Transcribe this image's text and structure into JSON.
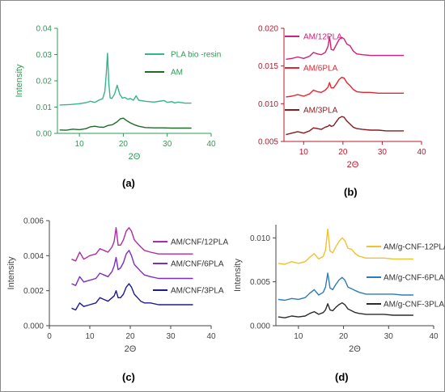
{
  "chart_data": [
    {
      "type": "line",
      "panel_label": "(a)",
      "xlabel": "2Θ",
      "ylabel": "Intensity",
      "xlim": [
        5,
        40
      ],
      "ylim": [
        0,
        0.04
      ],
      "xticks": [
        10,
        20,
        30,
        40
      ],
      "yticks": [
        0.0,
        0.01,
        0.02,
        0.03,
        0.04
      ],
      "ytick_labels": [
        "0.00",
        "0.01",
        "0.02",
        "0.03",
        "0.04"
      ],
      "grid": false,
      "legend_position": "top-right",
      "axis_color": "#2e9b55",
      "series": [
        {
          "name": "PLA bio -resin",
          "color": "#35b58a",
          "x": [
            5.5,
            8,
            10,
            11.5,
            12.5,
            13.5,
            14.5,
            15.3,
            15.8,
            16.1,
            16.4,
            16.7,
            17.0,
            17.4,
            18.0,
            18.6,
            19.2,
            19.8,
            20.3,
            21.0,
            21.6,
            22.3,
            22.9,
            23.5,
            25,
            27,
            28.5,
            29.3,
            30,
            31,
            31.7,
            32.5,
            34,
            35.5
          ],
          "values": [
            0.0108,
            0.011,
            0.0113,
            0.0117,
            0.0122,
            0.0118,
            0.0127,
            0.0132,
            0.016,
            0.0225,
            0.0305,
            0.019,
            0.0135,
            0.0133,
            0.015,
            0.0183,
            0.0148,
            0.0134,
            0.0137,
            0.013,
            0.0133,
            0.0126,
            0.0143,
            0.0126,
            0.0122,
            0.0119,
            0.0123,
            0.0125,
            0.0118,
            0.0121,
            0.0116,
            0.0119,
            0.0115,
            0.0115
          ]
        },
        {
          "name": "AM",
          "color": "#1e6b2a",
          "x": [
            5.5,
            7,
            8.5,
            10,
            11.5,
            12.5,
            13.5,
            14.5,
            15.5,
            16.5,
            17.5,
            18.5,
            19.3,
            20.0,
            20.8,
            21.6,
            22.5,
            23.5,
            25,
            27,
            29,
            31,
            33,
            35.5
          ],
          "values": [
            0.0013,
            0.0012,
            0.0016,
            0.0014,
            0.0018,
            0.0025,
            0.0027,
            0.0024,
            0.0023,
            0.003,
            0.0033,
            0.0043,
            0.0055,
            0.0058,
            0.0048,
            0.004,
            0.0033,
            0.0027,
            0.0022,
            0.0021,
            0.0021,
            0.002,
            0.002,
            0.002
          ]
        }
      ]
    },
    {
      "type": "line",
      "panel_label": "(b)",
      "xlabel": "2Θ",
      "ylabel": "",
      "xlim": [
        5,
        40
      ],
      "ylim": [
        0.005,
        0.02
      ],
      "xticks": [
        10,
        20,
        30,
        40
      ],
      "yticks": [
        0.005,
        0.01,
        0.015,
        0.02
      ],
      "ytick_labels": [
        "0.005",
        "0.010",
        "0.015",
        "0.020"
      ],
      "grid": false,
      "legend_position": "inline-right",
      "axis_color": "#c0182a",
      "series": [
        {
          "name": "AM/12PLA",
          "color": "#d0217a",
          "x": [
            5.5,
            7,
            8.5,
            10,
            11.5,
            12.5,
            13.5,
            14.5,
            15.5,
            16.2,
            16.6,
            17.0,
            17.6,
            18.3,
            19.0,
            19.7,
            20.3,
            21.0,
            21.8,
            22.6,
            23.5,
            25,
            27,
            29,
            31,
            33,
            35.5
          ],
          "values": [
            0.0159,
            0.016,
            0.0162,
            0.016,
            0.0163,
            0.0168,
            0.0166,
            0.0165,
            0.0168,
            0.0176,
            0.0189,
            0.0172,
            0.0171,
            0.0178,
            0.0185,
            0.0188,
            0.0186,
            0.0179,
            0.0177,
            0.017,
            0.0166,
            0.0165,
            0.0164,
            0.0164,
            0.0164,
            0.0164,
            0.0164
          ]
        },
        {
          "name": "AM/6PLA",
          "color": "#e8232e",
          "x": [
            5.5,
            7,
            8.5,
            10,
            11.5,
            12.5,
            13.5,
            14.5,
            15.5,
            16.2,
            16.6,
            17.0,
            17.6,
            18.3,
            19.0,
            19.7,
            20.3,
            21.0,
            21.8,
            22.6,
            23.5,
            25,
            27,
            29,
            31,
            33,
            35.5
          ],
          "values": [
            0.0109,
            0.011,
            0.0112,
            0.011,
            0.0113,
            0.0118,
            0.0116,
            0.0115,
            0.0118,
            0.0122,
            0.0128,
            0.0121,
            0.0121,
            0.0126,
            0.0132,
            0.0135,
            0.0134,
            0.0128,
            0.0124,
            0.0119,
            0.0116,
            0.0115,
            0.0115,
            0.0114,
            0.0114,
            0.0114,
            0.0114
          ]
        },
        {
          "name": "AM/3PLA",
          "color": "#8a1a1e",
          "x": [
            5.5,
            7,
            8.5,
            10,
            11.5,
            12.5,
            13.5,
            14.5,
            15.5,
            16.2,
            16.6,
            17.0,
            17.6,
            18.3,
            19.0,
            19.7,
            20.3,
            21.0,
            21.8,
            22.6,
            23.5,
            25,
            27,
            29,
            31,
            33,
            35.5
          ],
          "values": [
            0.0059,
            0.0061,
            0.0063,
            0.0061,
            0.0064,
            0.0068,
            0.0067,
            0.0066,
            0.0069,
            0.007,
            0.0072,
            0.007,
            0.0071,
            0.0076,
            0.0081,
            0.0083,
            0.0082,
            0.0077,
            0.0073,
            0.0069,
            0.0067,
            0.0066,
            0.0065,
            0.0065,
            0.0064,
            0.0064,
            0.0064
          ]
        }
      ]
    },
    {
      "type": "line",
      "panel_label": "(c)",
      "xlabel": "2Θ",
      "ylabel": "Intensity",
      "xlim": [
        0,
        40
      ],
      "ylim": [
        0,
        0.006
      ],
      "xticks": [
        0,
        10,
        20,
        30,
        40
      ],
      "yticks": [
        0.0,
        0.002,
        0.004,
        0.006
      ],
      "ytick_labels": [
        "0.000",
        "0.002",
        "0.004",
        "0.006"
      ],
      "grid": false,
      "legend_position": "inline-right",
      "axis_color": "#444444",
      "series": [
        {
          "name": "AM/CNF/12PLA",
          "color": "#b02aa8",
          "x": [
            5.5,
            6.5,
            7.5,
            8.5,
            10,
            11.5,
            12.5,
            13.5,
            14.5,
            15.5,
            16.0,
            16.5,
            17.0,
            17.6,
            18.3,
            19.0,
            19.7,
            20.3,
            21.0,
            21.8,
            22.6,
            23.5,
            25,
            27,
            29,
            31,
            33,
            35.5
          ],
          "values": [
            0.0038,
            0.0037,
            0.0042,
            0.0038,
            0.004,
            0.0041,
            0.0044,
            0.0043,
            0.0042,
            0.0045,
            0.0048,
            0.0056,
            0.0046,
            0.0046,
            0.0049,
            0.0054,
            0.0056,
            0.0054,
            0.0049,
            0.0047,
            0.0045,
            0.0043,
            0.0042,
            0.0041,
            0.0041,
            0.0041,
            0.0041,
            0.0041
          ]
        },
        {
          "name": "AM/CNF/6PLA",
          "color": "#7a2fc0",
          "x": [
            5.5,
            6.5,
            7.5,
            8.5,
            10,
            11.5,
            12.5,
            13.5,
            14.5,
            15.5,
            16.0,
            16.5,
            17.0,
            17.6,
            18.3,
            19.0,
            19.7,
            20.3,
            21.0,
            21.8,
            22.6,
            23.5,
            25,
            27,
            29,
            31,
            33,
            35.5
          ],
          "values": [
            0.0024,
            0.0023,
            0.0028,
            0.0025,
            0.0026,
            0.0027,
            0.003,
            0.0029,
            0.0028,
            0.0031,
            0.0034,
            0.0039,
            0.0032,
            0.0033,
            0.0036,
            0.0041,
            0.0043,
            0.004,
            0.0035,
            0.0033,
            0.0031,
            0.0029,
            0.0028,
            0.0027,
            0.0027,
            0.0027,
            0.0027,
            0.0027
          ]
        },
        {
          "name": "AM/CNF/3PLA",
          "color": "#1f1a8e",
          "x": [
            5.5,
            6.5,
            7.5,
            8.5,
            10,
            11.5,
            12.5,
            13.5,
            14.5,
            15.5,
            16.0,
            16.5,
            17.0,
            17.6,
            18.3,
            19.0,
            19.7,
            20.3,
            21.0,
            21.8,
            22.6,
            23.5,
            25,
            27,
            29,
            31,
            33,
            35.5
          ],
          "values": [
            0.001,
            0.0009,
            0.0013,
            0.0011,
            0.0012,
            0.0013,
            0.0016,
            0.0015,
            0.0014,
            0.0016,
            0.0017,
            0.002,
            0.0016,
            0.0016,
            0.0018,
            0.0022,
            0.0024,
            0.0022,
            0.0018,
            0.0016,
            0.0014,
            0.0013,
            0.0013,
            0.0012,
            0.0012,
            0.0012,
            0.0012,
            0.0012
          ]
        }
      ]
    },
    {
      "type": "line",
      "panel_label": "(d)",
      "xlabel": "2Θ",
      "ylabel": "Intensity",
      "xlim": [
        5,
        40
      ],
      "ylim": [
        0,
        0.0115
      ],
      "xticks": [
        10,
        20,
        30,
        40
      ],
      "yticks": [
        0.0,
        0.005,
        0.01
      ],
      "ytick_labels": [
        "0.000",
        "0.005",
        "0.010"
      ],
      "grid": false,
      "legend_position": "inline-right",
      "axis_color": "#444444",
      "series": [
        {
          "name": "AM/g-CNF-12PLA",
          "color": "#f2c12e",
          "x": [
            5.5,
            7,
            8.5,
            10,
            11.5,
            12.5,
            13.5,
            14.5,
            15.5,
            16.0,
            16.5,
            17.0,
            17.6,
            18.3,
            19.0,
            19.7,
            20.3,
            21.0,
            21.8,
            22.6,
            23.5,
            25,
            27,
            29,
            31,
            33,
            35.5
          ],
          "values": [
            0.0071,
            0.007,
            0.0073,
            0.0071,
            0.0073,
            0.0078,
            0.0082,
            0.0076,
            0.0079,
            0.0086,
            0.011,
            0.0085,
            0.0083,
            0.009,
            0.0096,
            0.01,
            0.0097,
            0.0088,
            0.0087,
            0.0082,
            0.0079,
            0.0077,
            0.0077,
            0.0077,
            0.0076,
            0.0076,
            0.0076
          ]
        },
        {
          "name": "AM/g-CNF-6PLA",
          "color": "#2e7bb8",
          "x": [
            5.5,
            7,
            8.5,
            10,
            11.5,
            12.5,
            13.5,
            14.5,
            15.5,
            16.0,
            16.5,
            17.0,
            17.6,
            18.3,
            19.0,
            19.7,
            20.3,
            21.0,
            21.8,
            22.6,
            23.5,
            25,
            27,
            29,
            31,
            33,
            35.5
          ],
          "values": [
            0.003,
            0.0029,
            0.0031,
            0.003,
            0.0032,
            0.0037,
            0.0041,
            0.0035,
            0.0038,
            0.0044,
            0.006,
            0.0043,
            0.0041,
            0.0047,
            0.0052,
            0.0055,
            0.0052,
            0.0044,
            0.0042,
            0.004,
            0.0038,
            0.0036,
            0.0036,
            0.0036,
            0.0036,
            0.0035,
            0.0035
          ]
        },
        {
          "name": "AM/g-CNF-3PLA",
          "color": "#2b2b2b",
          "x": [
            5.5,
            7,
            8.5,
            10,
            11.5,
            12.5,
            13.5,
            14.5,
            15.5,
            16.0,
            16.5,
            17.0,
            17.6,
            18.3,
            19.0,
            19.7,
            20.3,
            21.0,
            21.8,
            22.6,
            23.5,
            25,
            27,
            29,
            31,
            33,
            35.5
          ],
          "values": [
            0.001,
            0.0009,
            0.0011,
            0.001,
            0.0011,
            0.0014,
            0.0016,
            0.0013,
            0.0015,
            0.0018,
            0.0025,
            0.0018,
            0.0017,
            0.0021,
            0.0024,
            0.0026,
            0.0024,
            0.0019,
            0.0017,
            0.0015,
            0.0014,
            0.0013,
            0.0013,
            0.0013,
            0.0012,
            0.0012,
            0.0012
          ]
        }
      ]
    }
  ]
}
